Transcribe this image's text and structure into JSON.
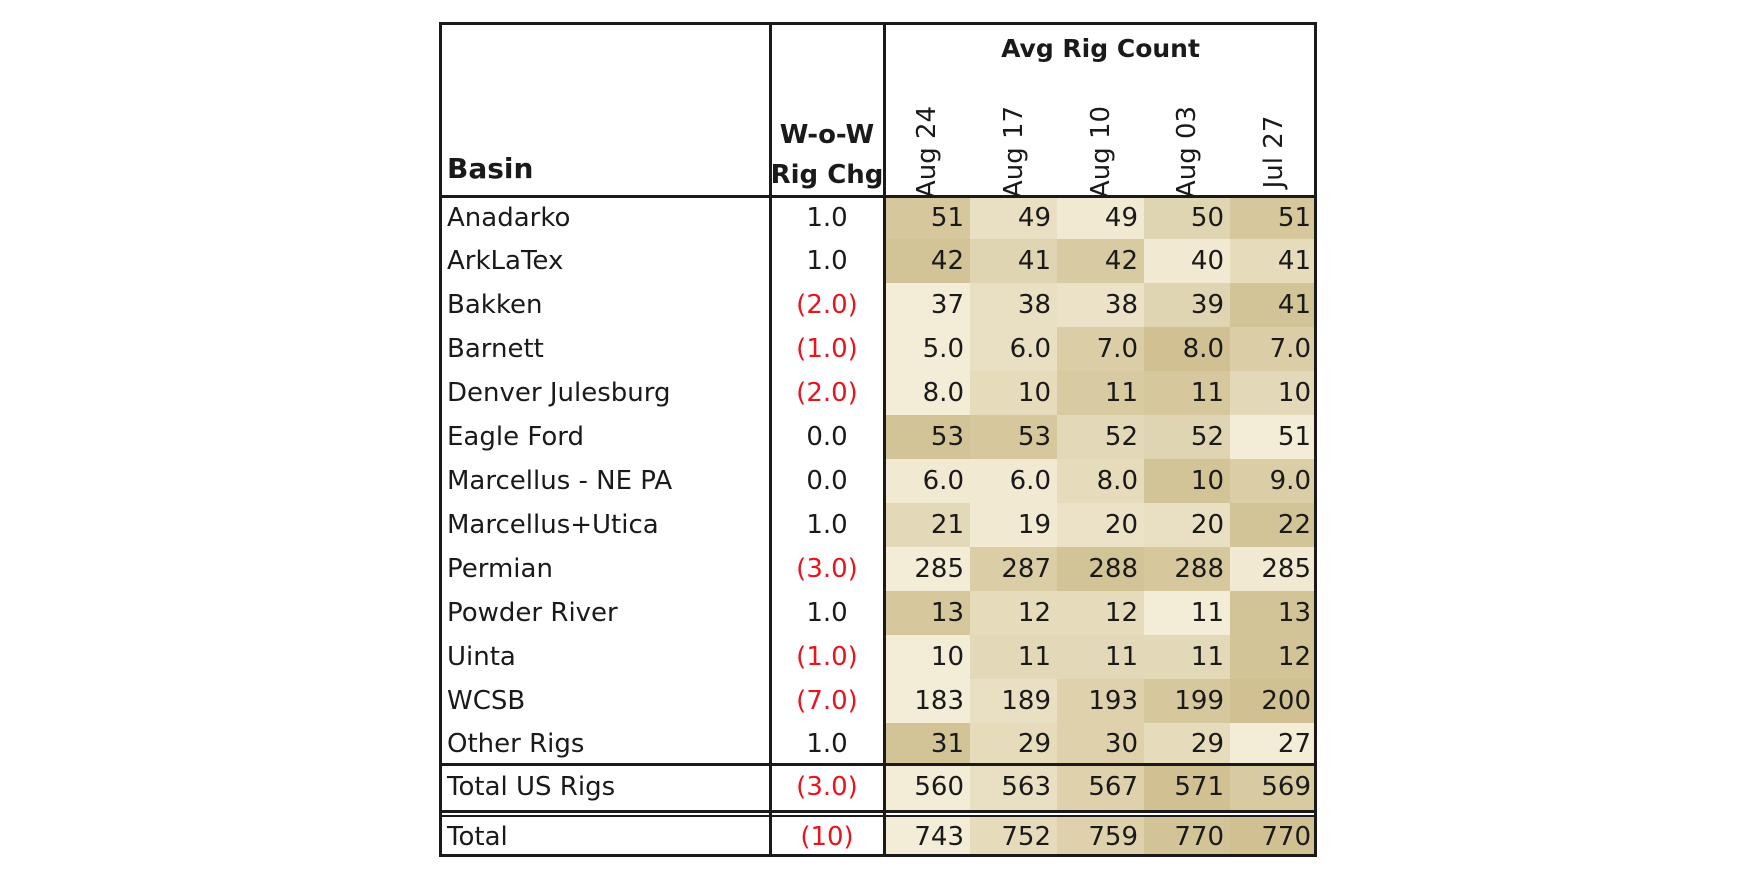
{
  "header": {
    "basin_label": "Basin",
    "chg_label_line1": "W-o-W",
    "chg_label_line2": "Rig Chg",
    "avg_label": "Avg Rig Count"
  },
  "chart_data": {
    "type": "table",
    "title": "",
    "columns": [
      "Aug 24",
      "Aug 17",
      "Aug 10",
      "Aug 03",
      "Jul 27"
    ],
    "rows": [
      {
        "basin": "Anadarko",
        "chg": "1.0",
        "values": [
          "51",
          "49",
          "49",
          "50",
          "51"
        ],
        "shade": [
          0.6,
          0.25,
          0.1,
          0.4,
          0.6
        ]
      },
      {
        "basin": "ArkLaTex",
        "chg": "1.0",
        "values": [
          "42",
          "41",
          "42",
          "40",
          "41"
        ],
        "shade": [
          0.65,
          0.4,
          0.55,
          0.1,
          0.3
        ]
      },
      {
        "basin": "Bakken",
        "chg": "(2.0)",
        "values": [
          "37",
          "38",
          "38",
          "39",
          "41"
        ],
        "shade": [
          0.05,
          0.25,
          0.2,
          0.4,
          0.65
        ]
      },
      {
        "basin": "Barnett",
        "chg": "(1.0)",
        "values": [
          "5.0",
          "6.0",
          "7.0",
          "8.0",
          "7.0"
        ],
        "shade": [
          0.05,
          0.25,
          0.5,
          0.7,
          0.5
        ]
      },
      {
        "basin": "Denver Julesburg",
        "chg": "(2.0)",
        "values": [
          "8.0",
          "10",
          "11",
          "11",
          "10"
        ],
        "shade": [
          0.05,
          0.3,
          0.55,
          0.6,
          0.35
        ]
      },
      {
        "basin": "Eagle Ford",
        "chg": "0.0",
        "values": [
          "53",
          "53",
          "52",
          "52",
          "51"
        ],
        "shade": [
          0.65,
          0.6,
          0.35,
          0.4,
          0.05
        ]
      },
      {
        "basin": "Marcellus - NE PA",
        "chg": "0.0",
        "values": [
          "6.0",
          "6.0",
          "8.0",
          "10",
          "9.0"
        ],
        "shade": [
          0.1,
          0.1,
          0.3,
          0.65,
          0.5
        ]
      },
      {
        "basin": "Marcellus+Utica",
        "chg": "1.0",
        "values": [
          "21",
          "19",
          "20",
          "20",
          "22"
        ],
        "shade": [
          0.35,
          0.1,
          0.2,
          0.25,
          0.65
        ]
      },
      {
        "basin": "Permian",
        "chg": "(3.0)",
        "values": [
          "285",
          "287",
          "288",
          "288",
          "285"
        ],
        "shade": [
          0.05,
          0.5,
          0.65,
          0.6,
          0.1
        ]
      },
      {
        "basin": "Powder River",
        "chg": "1.0",
        "values": [
          "13",
          "12",
          "12",
          "11",
          "13"
        ],
        "shade": [
          0.6,
          0.3,
          0.3,
          0.05,
          0.65
        ]
      },
      {
        "basin": "Uinta",
        "chg": "(1.0)",
        "values": [
          "10",
          "11",
          "11",
          "11",
          "12"
        ],
        "shade": [
          0.05,
          0.35,
          0.35,
          0.35,
          0.65
        ]
      },
      {
        "basin": "WCSB",
        "chg": "(7.0)",
        "values": [
          "183",
          "189",
          "193",
          "199",
          "200"
        ],
        "shade": [
          0.05,
          0.25,
          0.45,
          0.6,
          0.7
        ]
      },
      {
        "basin": "Other Rigs",
        "chg": "1.0",
        "values": [
          "31",
          "29",
          "30",
          "29",
          "27"
        ],
        "shade": [
          0.65,
          0.3,
          0.45,
          0.3,
          0.05
        ]
      },
      {
        "basin": "Total US Rigs",
        "chg": "(3.0)",
        "values": [
          "560",
          "563",
          "567",
          "571",
          "569"
        ],
        "shade": [
          0.05,
          0.25,
          0.45,
          0.7,
          0.55
        ]
      },
      {
        "basin": "Total",
        "chg": "(10)",
        "values": [
          "743",
          "752",
          "759",
          "770",
          "770"
        ],
        "shade": [
          0.05,
          0.3,
          0.45,
          0.65,
          0.7
        ]
      }
    ]
  },
  "colors": {
    "shade_light": "#f6f0dc",
    "shade_dark": "#c0ac72",
    "negative": "#e8141e",
    "border": "#1a1a1a"
  }
}
